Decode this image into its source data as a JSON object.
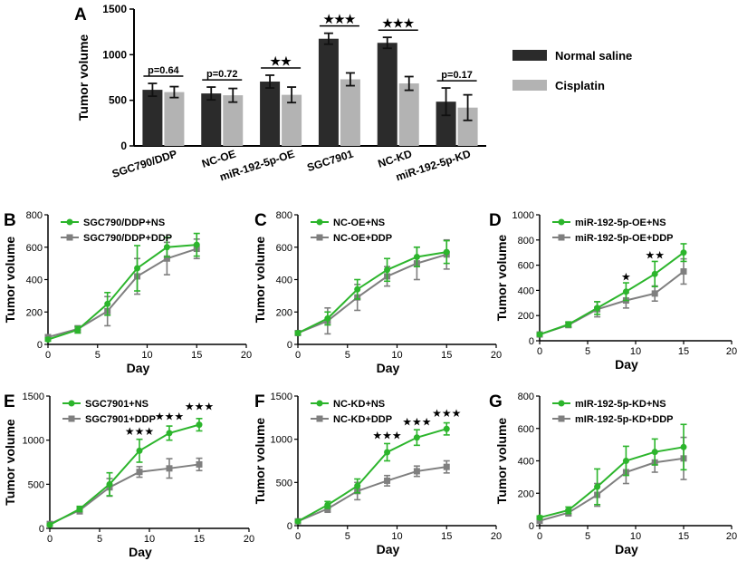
{
  "figure": {
    "colors": {
      "ns_bar": "#2b2b2b",
      "ddp_bar": "#b3b3b3",
      "ns_line": "#2cb52c",
      "ddp_line": "#7f7f7f"
    }
  },
  "chart_data": [
    {
      "panel": "A",
      "type": "bar",
      "ylabel": "Tumor volume",
      "ylim": [
        0,
        1500
      ],
      "yticks": [
        "0",
        "500",
        "1000",
        "1500"
      ],
      "categories": [
        "SGC790/DDP",
        "NC-OE",
        "miR-192-5p-OE",
        "SGC7901",
        "NC-KD",
        "miR-192-5p-KD"
      ],
      "series": [
        {
          "name": "Normal saline",
          "values": [
            615,
            575,
            705,
            1175,
            1130,
            485
          ],
          "errors": [
            70,
            70,
            70,
            60,
            60,
            150
          ]
        },
        {
          "name": "Cisplatin",
          "values": [
            590,
            555,
            560,
            730,
            685,
            420
          ],
          "errors": [
            60,
            75,
            85,
            70,
            75,
            140
          ]
        }
      ],
      "annotations": [
        "p=0.64",
        "p=0.72",
        "★★",
        "★★★",
        "★★★",
        "p=0.17"
      ],
      "legend": [
        "Normal saline",
        "Cisplatin"
      ]
    },
    {
      "panel": "B",
      "type": "line",
      "xlabel": "Day",
      "ylabel": "Tumor volume",
      "xlim": [
        0,
        20
      ],
      "ylim": [
        0,
        800
      ],
      "xticks": [
        "0",
        "5",
        "10",
        "15",
        "20"
      ],
      "yticks": [
        "0",
        "200",
        "400",
        "600",
        "800"
      ],
      "x": [
        0,
        3,
        6,
        9,
        12,
        15
      ],
      "series": [
        {
          "name": "SGC790/DDP+NS",
          "values": [
            30,
            90,
            250,
            470,
            600,
            615
          ],
          "errors": [
            10,
            20,
            70,
            140,
            60,
            70
          ]
        },
        {
          "name": "SGC790/DDP+DDP",
          "values": [
            45,
            95,
            205,
            420,
            530,
            590
          ],
          "errors": [
            10,
            20,
            90,
            110,
            100,
            60
          ]
        }
      ],
      "stars": []
    },
    {
      "panel": "C",
      "type": "line",
      "xlabel": "Day",
      "ylabel": "Tumor volume",
      "xlim": [
        0,
        20
      ],
      "ylim": [
        0,
        800
      ],
      "xticks": [
        "0",
        "5",
        "10",
        "15",
        "20"
      ],
      "yticks": [
        "0",
        "200",
        "400",
        "600",
        "800"
      ],
      "x": [
        0,
        3,
        6,
        9,
        12,
        15
      ],
      "series": [
        {
          "name": "NC-OE+NS",
          "values": [
            70,
            160,
            340,
            460,
            540,
            570
          ],
          "errors": [
            10,
            40,
            60,
            70,
            60,
            70
          ]
        },
        {
          "name": "NC-OE+DDP",
          "values": [
            70,
            145,
            290,
            420,
            500,
            555
          ],
          "errors": [
            10,
            80,
            80,
            60,
            100,
            90
          ]
        }
      ],
      "stars": []
    },
    {
      "panel": "D",
      "type": "line",
      "xlabel": "Day",
      "ylabel": "Tumor volume",
      "xlim": [
        0,
        20
      ],
      "ylim": [
        0,
        1000
      ],
      "xticks": [
        "0",
        "5",
        "10",
        "15",
        "20"
      ],
      "yticks": [
        "0",
        "200",
        "400",
        "600",
        "800",
        "1000"
      ],
      "x": [
        0,
        3,
        6,
        9,
        12,
        15
      ],
      "series": [
        {
          "name": "miR-192-5p-OE+NS",
          "values": [
            50,
            130,
            260,
            390,
            530,
            700
          ],
          "errors": [
            10,
            20,
            50,
            70,
            100,
            70
          ]
        },
        {
          "name": "miR-192-5p-OE+DDP",
          "values": [
            50,
            125,
            250,
            320,
            375,
            550
          ],
          "errors": [
            10,
            20,
            60,
            60,
            60,
            100
          ]
        }
      ],
      "stars": [
        {
          "x": 9,
          "label": "★",
          "y": 480
        },
        {
          "x": 12,
          "label": "★★",
          "y": 650
        }
      ]
    },
    {
      "panel": "E",
      "type": "line",
      "xlabel": "Day",
      "ylabel": "Tumor volume",
      "xlim": [
        0,
        20
      ],
      "ylim": [
        0,
        1500
      ],
      "xticks": [
        "0",
        "5",
        "10",
        "15",
        "20"
      ],
      "yticks": [
        "0",
        "500",
        "1000",
        "1500"
      ],
      "x": [
        0,
        3,
        6,
        9,
        12,
        15
      ],
      "series": [
        {
          "name": "SGC7901+NS",
          "values": [
            40,
            220,
            500,
            880,
            1080,
            1175
          ],
          "errors": [
            10,
            30,
            130,
            130,
            80,
            70
          ]
        },
        {
          "name": "SGC7901+DDP",
          "values": [
            50,
            205,
            465,
            640,
            680,
            725
          ],
          "errors": [
            10,
            40,
            100,
            60,
            110,
            70
          ]
        }
      ],
      "stars": [
        {
          "x": 9,
          "label": "★★★",
          "y": 1060
        },
        {
          "x": 12,
          "label": "★★★",
          "y": 1230
        },
        {
          "x": 15,
          "label": "★★★",
          "y": 1340
        }
      ]
    },
    {
      "panel": "F",
      "type": "line",
      "xlabel": "Day",
      "ylabel": "Tumor volume",
      "xlim": [
        0,
        20
      ],
      "ylim": [
        0,
        1500
      ],
      "xticks": [
        "0",
        "5",
        "10",
        "15",
        "20"
      ],
      "yticks": [
        "0",
        "500",
        "1000",
        "1500"
      ],
      "x": [
        0,
        3,
        6,
        9,
        12,
        15
      ],
      "series": [
        {
          "name": "NC-KD+NS",
          "values": [
            50,
            240,
            460,
            850,
            1020,
            1120
          ],
          "errors": [
            10,
            40,
            80,
            100,
            90,
            70
          ]
        },
        {
          "name": "NC-KD+DDP",
          "values": [
            50,
            195,
            400,
            520,
            630,
            680
          ],
          "errors": [
            10,
            40,
            100,
            60,
            60,
            70
          ]
        }
      ],
      "stars": [
        {
          "x": 9,
          "label": "★★★",
          "y": 1000
        },
        {
          "x": 12,
          "label": "★★★",
          "y": 1160
        },
        {
          "x": 15,
          "label": "★★★",
          "y": 1260
        }
      ]
    },
    {
      "panel": "G",
      "type": "line",
      "xlabel": "Day",
      "ylabel": "Tumor volume",
      "xlim": [
        0,
        20
      ],
      "ylim": [
        0,
        800
      ],
      "xticks": [
        "0",
        "5",
        "10",
        "15",
        "20"
      ],
      "yticks": [
        "0",
        "200",
        "400",
        "600",
        "800"
      ],
      "x": [
        0,
        3,
        6,
        9,
        12,
        15
      ],
      "series": [
        {
          "name": "mIR-192-5p-KD+NS",
          "values": [
            50,
            95,
            240,
            400,
            455,
            485
          ],
          "errors": [
            10,
            20,
            110,
            90,
            80,
            140
          ]
        },
        {
          "name": "mIR-192-5p-KD+DDP",
          "values": [
            30,
            80,
            190,
            330,
            390,
            415
          ],
          "errors": [
            10,
            20,
            70,
            70,
            60,
            130
          ]
        }
      ],
      "stars": []
    }
  ]
}
